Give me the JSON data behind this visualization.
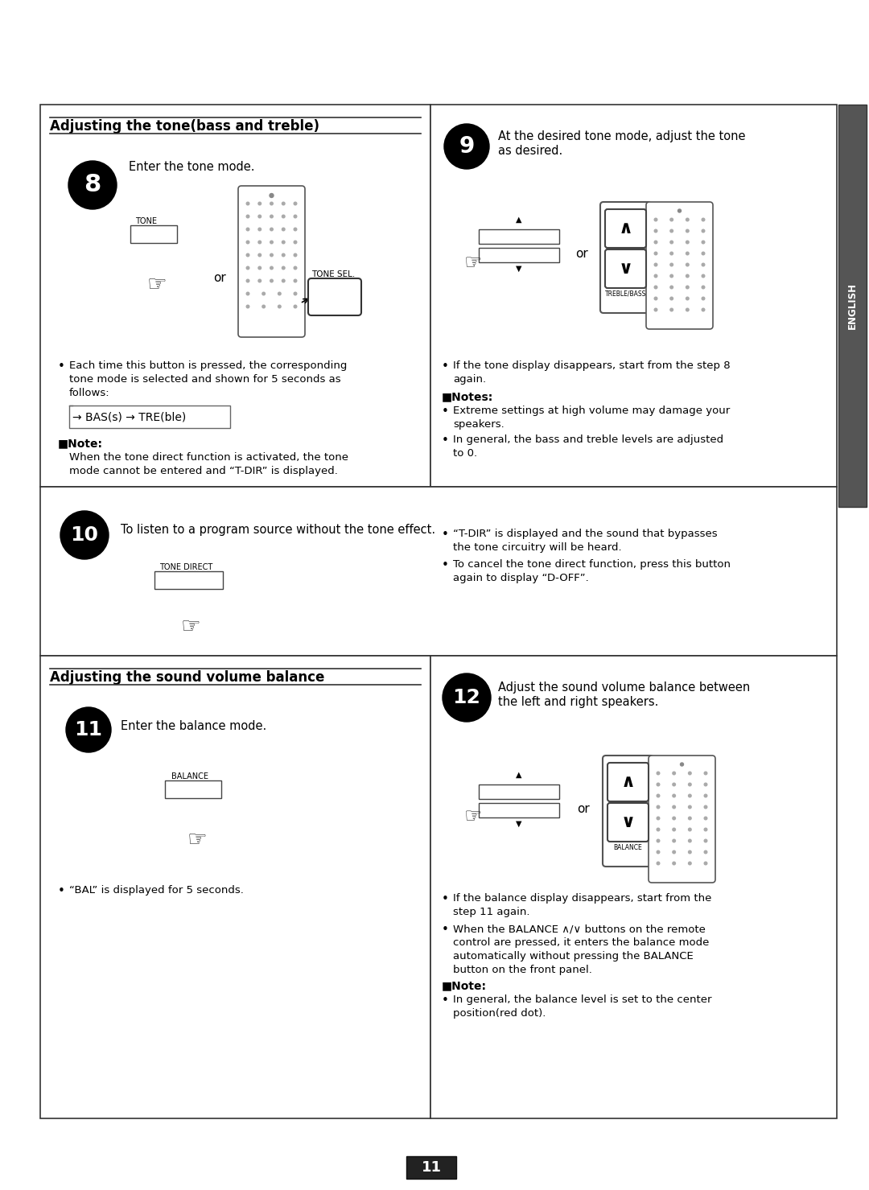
{
  "page_number": "11",
  "bg": "#ffffff",
  "border_color": "#222222",
  "section1_title": "Adjusting the tone(bass and treble)",
  "step8_label": "8",
  "step8_desc": "Enter the tone mode.",
  "step8_button_label": "TONE",
  "step8_or": "or",
  "step8_remote_label": "TONE SEL.",
  "step8_bullet1": "Each time this button is pressed, the corresponding",
  "step8_bullet2": "tone mode is selected and shown for 5 seconds as",
  "step8_bullet3": "follows:",
  "step8_cycle": "→ BAS(s) → TRE(ble)",
  "step8_note_header": "■Note:",
  "step8_note1": "When the tone direct function is activated, the tone",
  "step8_note2": "mode cannot be entered and “T-DIR” is displayed.",
  "step9_label": "9",
  "step9_desc1": "At the desired tone mode, adjust the tone",
  "step9_desc2": "as desired.",
  "step9_or": "or",
  "step9_remote_label": "TREBLE/BASS",
  "step9_b1_1": "If the tone display disappears, start from the step 8",
  "step9_b1_2": "again.",
  "step9_notes_header": "■Notes:",
  "step9_b2_1": "Extreme settings at high volume may damage your",
  "step9_b2_2": "speakers.",
  "step9_b3_1": "In general, the bass and treble levels are adjusted",
  "step9_b3_2": "to 0.",
  "step10_label": "10",
  "step10_desc": "To listen to a program source without the tone effect.",
  "step10_button_label": "TONE DIRECT",
  "step10_b1_1": "“T-DIR” is displayed and the sound that bypasses",
  "step10_b1_2": "the tone circuitry will be heard.",
  "step10_b2_1": "To cancel the tone direct function, press this button",
  "step10_b2_2": "again to display “D-OFF”.",
  "section2_title": "Adjusting the sound volume balance",
  "step11_label": "11",
  "step11_desc": "Enter the balance mode.",
  "step11_button_label": "BALANCE",
  "step11_bullet": "“BAL” is displayed for 5 seconds.",
  "step12_label": "12",
  "step12_desc1": "Adjust the sound volume balance between",
  "step12_desc2": "the left and right speakers.",
  "step12_or": "or",
  "step12_remote_label": "BALANCE",
  "step12_b1_1": "If the balance display disappears, start from the",
  "step12_b1_2": "step 11 again.",
  "step12_b2_1": "When the BALANCE ∧/∨ buttons on the remote",
  "step12_b2_2": "control are pressed, it enters the balance mode",
  "step12_b2_3": "automatically without pressing the BALANCE",
  "step12_b2_4": "button on the front panel.",
  "step12_note_header": "■Note:",
  "step12_note1": "In general, the balance level is set to the center",
  "step12_note2": "position(red dot).",
  "english_label": "ENGLISH"
}
